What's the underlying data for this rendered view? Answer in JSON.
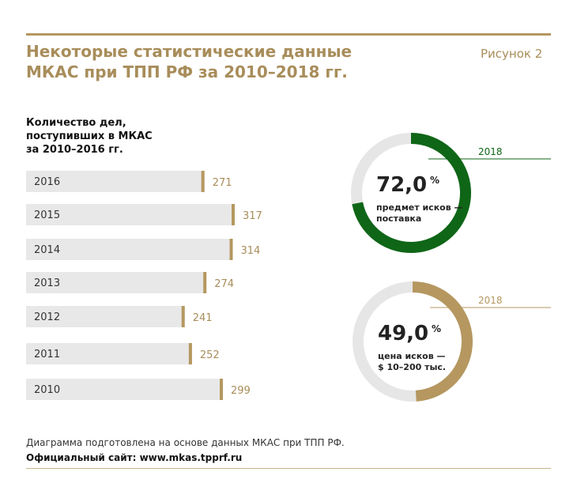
{
  "header": {
    "title_line1": "Некоторые статистические данные",
    "title_line2": "МКАС при ТПП РФ за 2010–2018 гг.",
    "figure_label": "Рисунок 2"
  },
  "colors": {
    "accent_gold": "#b5975f",
    "green": "#0f6617",
    "track": "#e6e6e6"
  },
  "chart_data": [
    {
      "type": "bar",
      "orientation": "horizontal",
      "title_lines": [
        "Количество дел,",
        "поступивших в МКАС",
        "за 2010–2016 гг."
      ],
      "categories": [
        "2016",
        "2015",
        "2014",
        "2013",
        "2012",
        "2011",
        "2010"
      ],
      "values": [
        271,
        317,
        314,
        274,
        241,
        252,
        299
      ],
      "xlim": [
        0,
        317
      ]
    },
    {
      "type": "pie",
      "style": "donut",
      "year": "2018",
      "value": 72.0,
      "value_label": "72,0",
      "unit": "%",
      "caption_lines": [
        "предмет исков —",
        "поставка"
      ],
      "color": "#0f6617"
    },
    {
      "type": "pie",
      "style": "donut",
      "year": "2018",
      "value": 49.0,
      "value_label": "49,0",
      "unit": "%",
      "caption_lines": [
        "цена исков —",
        "$ 10–200 тыс."
      ],
      "color": "#b5975f"
    }
  ],
  "footer": {
    "note": "Диаграмма подготовлена на основе данных МКАС при ТПП РФ.",
    "site": "Официальный сайт: www.mkas.tpprf.ru"
  }
}
